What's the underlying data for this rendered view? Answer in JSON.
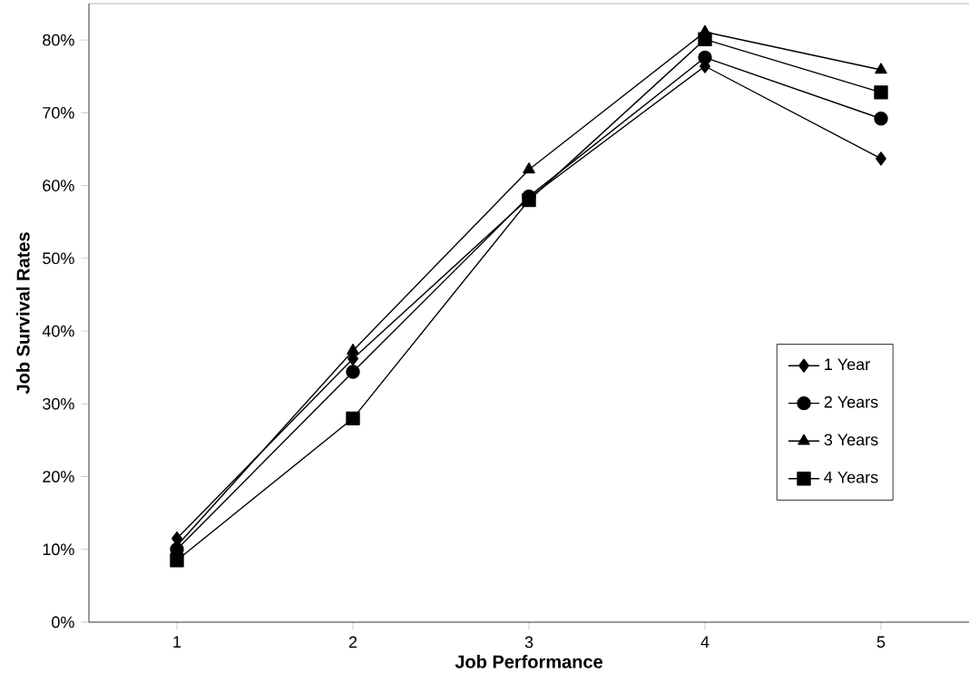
{
  "chart_data": {
    "type": "line",
    "xlabel": "Job Performance",
    "ylabel": "Job Survival Rates",
    "categories": [
      "1",
      "2",
      "3",
      "4",
      "5"
    ],
    "series": [
      {
        "name": "1 Year",
        "color": "#000000",
        "marker": "diamond",
        "values": [
          11.5,
          36.2,
          58.3,
          76.4,
          63.7
        ]
      },
      {
        "name": "2 Years",
        "color": "#000000",
        "marker": "circle",
        "values": [
          10,
          34.4,
          58.5,
          77.6,
          69.2
        ]
      },
      {
        "name": "3 Years",
        "color": "#000000",
        "marker": "triangle",
        "values": [
          10.5,
          37.3,
          62.2,
          81.1,
          75.9
        ]
      },
      {
        "name": "4 Years",
        "color": "#000000",
        "marker": "square",
        "values": [
          8.5,
          28,
          58,
          80.1,
          72.8
        ]
      }
    ],
    "ylim": [
      0,
      85
    ],
    "yticks": [
      {
        "value": 0,
        "label": "0%"
      },
      {
        "value": 10,
        "label": "10%"
      },
      {
        "value": 20,
        "label": "20%"
      },
      {
        "value": 30,
        "label": "30%"
      },
      {
        "value": 40,
        "label": "40%"
      },
      {
        "value": 50,
        "label": "50%"
      },
      {
        "value": 60,
        "label": "60%"
      },
      {
        "value": 70,
        "label": "70%"
      },
      {
        "value": 80,
        "label": "80%"
      }
    ],
    "legend": "right",
    "grid": false,
    "line_style": "solid"
  }
}
